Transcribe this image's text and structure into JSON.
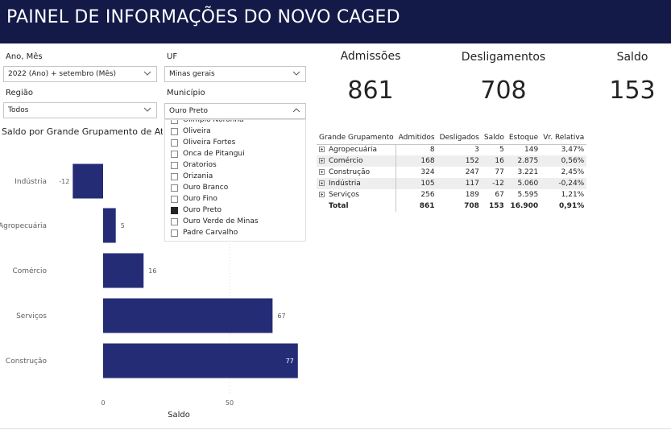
{
  "header": {
    "title": "PAINEL DE INFORMAÇÕES DO NOVO CAGED"
  },
  "filters": {
    "ano_mes": {
      "label": "Ano, Mês",
      "value": "2022 (Ano) + setembro (Mês)"
    },
    "uf": {
      "label": "UF",
      "value": "Minas gerais"
    },
    "regiao": {
      "label": "Região",
      "value": "Todos"
    },
    "municipio": {
      "label": "Município",
      "value": "Ouro Preto",
      "options": [
        {
          "label": "Olímpio Noronha",
          "checked": false
        },
        {
          "label": "Oliveira",
          "checked": false
        },
        {
          "label": "Oliveira Fortes",
          "checked": false
        },
        {
          "label": "Onca de Pitangui",
          "checked": false
        },
        {
          "label": "Oratorios",
          "checked": false
        },
        {
          "label": "Orizania",
          "checked": false
        },
        {
          "label": "Ouro Branco",
          "checked": false
        },
        {
          "label": "Ouro Fino",
          "checked": false
        },
        {
          "label": "Ouro Preto",
          "checked": true
        },
        {
          "label": "Ouro Verde de Minas",
          "checked": false
        },
        {
          "label": "Padre Carvalho",
          "checked": false
        }
      ]
    }
  },
  "cards": {
    "admissoes": {
      "label": "Admissões",
      "value": "861"
    },
    "desligamentos": {
      "label": "Desligamentos",
      "value": "708"
    },
    "saldo": {
      "label": "Saldo",
      "value": "153"
    }
  },
  "matrix": {
    "headers": [
      "Grande Grupamento",
      "Admitidos",
      "Desligados",
      "Saldo",
      "Estoque",
      "Vr. Relativa"
    ],
    "rows": [
      [
        "Agropecuária",
        "8",
        "3",
        "5",
        "149",
        "3,47%"
      ],
      [
        "Comércio",
        "168",
        "152",
        "16",
        "2.875",
        "0,56%"
      ],
      [
        "Construção",
        "324",
        "247",
        "77",
        "3.221",
        "2,45%"
      ],
      [
        "Indústria",
        "105",
        "117",
        "-12",
        "5.060",
        "-0,24%"
      ],
      [
        "Serviços",
        "256",
        "189",
        "67",
        "5.595",
        "1,21%"
      ]
    ],
    "total": [
      "Total",
      "861",
      "708",
      "153",
      "16.900",
      "0,91%"
    ]
  },
  "chart_title": "Saldo por Grande Grupamento de Atividade",
  "chart_data": {
    "type": "bar",
    "orientation": "horizontal",
    "title": "Saldo por Grande Grupamento de Atividade",
    "categories": [
      "Indústria",
      "Agropecuária",
      "Comércio",
      "Serviços",
      "Construção"
    ],
    "values": [
      -12,
      5,
      16,
      67,
      77
    ],
    "value_labels": [
      "-12",
      "5",
      "16",
      "67",
      "77"
    ],
    "xlabel": "Saldo",
    "ylabel": "",
    "xticks": [
      "0",
      "50"
    ],
    "xlim": [
      -24,
      78
    ],
    "bar_color": "#252c76",
    "grid": true
  }
}
